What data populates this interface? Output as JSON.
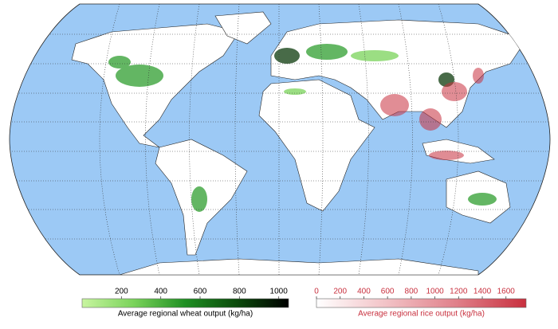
{
  "legends": [
    {
      "title": "Average regional wheat output (kg/ha)",
      "lim": [
        0,
        1050
      ],
      "ticks": [
        200,
        400,
        600,
        800,
        1000
      ],
      "colors": [
        "#c8f5a0",
        "#7ad35a",
        "#1f8f23",
        "#0b4a0b",
        "#000000"
      ],
      "label_color": "#000000"
    },
    {
      "title": "Average regional rice output (kg/ha)",
      "lim": [
        0,
        1770
      ],
      "ticks": [
        0,
        200,
        400,
        600,
        800,
        1000,
        1200,
        1400,
        1600
      ],
      "colors": [
        "#ffffff",
        "#f2c2c6",
        "#e0808a",
        "#c8303e"
      ],
      "label_color": "#c8303e"
    }
  ]
}
